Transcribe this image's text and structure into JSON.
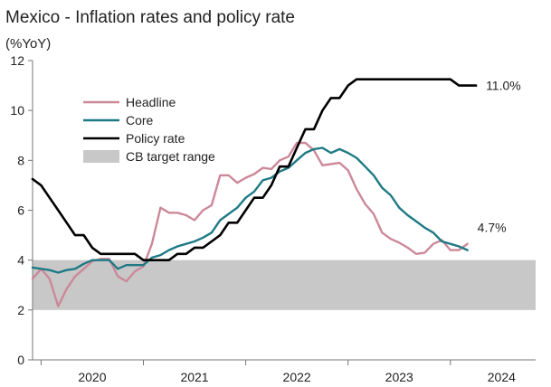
{
  "chart_data": {
    "type": "line",
    "title": "Mexico - Inflation rates and policy rate",
    "ylabel": "(%YoY)",
    "xlabel": "",
    "ylim": [
      0,
      12
    ],
    "yticks": [
      0,
      2,
      4,
      6,
      8,
      10,
      12
    ],
    "xtick_labels": [
      "2020",
      "2021",
      "2022",
      "2023",
      "2024"
    ],
    "x_start": 2019.917,
    "x_end": 2024.833,
    "band": {
      "name": "CB target range",
      "low": 2,
      "high": 4,
      "color": "#c8c8c8"
    },
    "series": [
      {
        "name": "Headline",
        "color": "#cc8899",
        "x": [
          2019.917,
          2020.0,
          2020.083,
          2020.167,
          2020.25,
          2020.333,
          2020.417,
          2020.5,
          2020.583,
          2020.667,
          2020.75,
          2020.833,
          2020.917,
          2021.0,
          2021.083,
          2021.167,
          2021.25,
          2021.333,
          2021.417,
          2021.5,
          2021.583,
          2021.667,
          2021.75,
          2021.833,
          2021.917,
          2022.0,
          2022.083,
          2022.167,
          2022.25,
          2022.333,
          2022.417,
          2022.5,
          2022.583,
          2022.667,
          2022.75,
          2022.833,
          2022.917,
          2023.0,
          2023.083,
          2023.167,
          2023.25,
          2023.333,
          2023.417,
          2023.5,
          2023.583,
          2023.667,
          2023.75,
          2023.833,
          2023.917,
          2024.0,
          2024.083,
          2024.167
        ],
        "values": [
          3.25,
          3.65,
          3.25,
          2.15,
          2.85,
          3.35,
          3.65,
          3.95,
          4.05,
          4.05,
          3.35,
          3.15,
          3.55,
          3.75,
          4.65,
          6.1,
          5.9,
          5.9,
          5.8,
          5.6,
          6.0,
          6.2,
          7.4,
          7.4,
          7.1,
          7.3,
          7.45,
          7.7,
          7.65,
          8.0,
          8.15,
          8.7,
          8.7,
          8.4,
          7.8,
          7.85,
          7.9,
          7.6,
          6.85,
          6.25,
          5.85,
          5.1,
          4.85,
          4.7,
          4.5,
          4.25,
          4.3,
          4.65,
          4.8,
          4.4,
          4.4,
          4.65
        ]
      },
      {
        "name": "Core",
        "color": "#1e7a85",
        "x": [
          2019.917,
          2020.0,
          2020.083,
          2020.167,
          2020.25,
          2020.333,
          2020.417,
          2020.5,
          2020.583,
          2020.667,
          2020.75,
          2020.833,
          2020.917,
          2021.0,
          2021.083,
          2021.167,
          2021.25,
          2021.333,
          2021.417,
          2021.5,
          2021.583,
          2021.667,
          2021.75,
          2021.833,
          2021.917,
          2022.0,
          2022.083,
          2022.167,
          2022.25,
          2022.333,
          2022.417,
          2022.5,
          2022.583,
          2022.667,
          2022.75,
          2022.833,
          2022.917,
          2023.0,
          2023.083,
          2023.167,
          2023.25,
          2023.333,
          2023.417,
          2023.5,
          2023.583,
          2023.667,
          2023.75,
          2023.833,
          2023.917,
          2024.0,
          2024.083,
          2024.167
        ],
        "values": [
          3.7,
          3.65,
          3.6,
          3.5,
          3.6,
          3.65,
          3.85,
          4.0,
          4.0,
          4.0,
          3.65,
          3.8,
          3.8,
          3.8,
          4.1,
          4.2,
          4.4,
          4.55,
          4.65,
          4.75,
          4.9,
          5.1,
          5.6,
          5.85,
          6.1,
          6.5,
          6.75,
          7.2,
          7.3,
          7.55,
          7.7,
          8.0,
          8.3,
          8.45,
          8.5,
          8.3,
          8.45,
          8.3,
          8.1,
          7.75,
          7.4,
          6.9,
          6.6,
          6.1,
          5.8,
          5.55,
          5.3,
          5.1,
          4.75,
          4.65,
          4.55,
          4.4
        ]
      },
      {
        "name": "Policy rate",
        "color": "#000000",
        "x": [
          2019.917,
          2020.0,
          2020.083,
          2020.167,
          2020.25,
          2020.333,
          2020.417,
          2020.5,
          2020.583,
          2020.667,
          2020.75,
          2020.833,
          2020.917,
          2021.0,
          2021.083,
          2021.167,
          2021.25,
          2021.333,
          2021.417,
          2021.5,
          2021.583,
          2021.667,
          2021.75,
          2021.833,
          2021.917,
          2022.0,
          2022.083,
          2022.167,
          2022.25,
          2022.333,
          2022.417,
          2022.5,
          2022.583,
          2022.667,
          2022.75,
          2022.833,
          2022.917,
          2023.0,
          2023.083,
          2023.167,
          2023.25,
          2023.333,
          2023.417,
          2023.5,
          2023.583,
          2023.667,
          2023.75,
          2023.833,
          2023.917,
          2024.0,
          2024.083,
          2024.167,
          2024.25
        ],
        "values": [
          7.25,
          7.0,
          6.5,
          6.0,
          5.5,
          5.0,
          5.0,
          4.5,
          4.25,
          4.25,
          4.25,
          4.25,
          4.25,
          4.0,
          4.0,
          4.0,
          4.0,
          4.25,
          4.25,
          4.5,
          4.5,
          4.75,
          5.0,
          5.5,
          5.5,
          6.0,
          6.5,
          6.5,
          7.0,
          7.75,
          7.75,
          8.5,
          9.25,
          9.25,
          10.0,
          10.5,
          10.5,
          11.0,
          11.25,
          11.25,
          11.25,
          11.25,
          11.25,
          11.25,
          11.25,
          11.25,
          11.25,
          11.25,
          11.25,
          11.25,
          11.0,
          11.0,
          11.0
        ]
      }
    ],
    "annotations": [
      {
        "text": "11.0%",
        "series": "Policy rate"
      },
      {
        "text": "4.7%",
        "series": "Headline"
      }
    ],
    "legend": {
      "placement": "top-left"
    }
  }
}
